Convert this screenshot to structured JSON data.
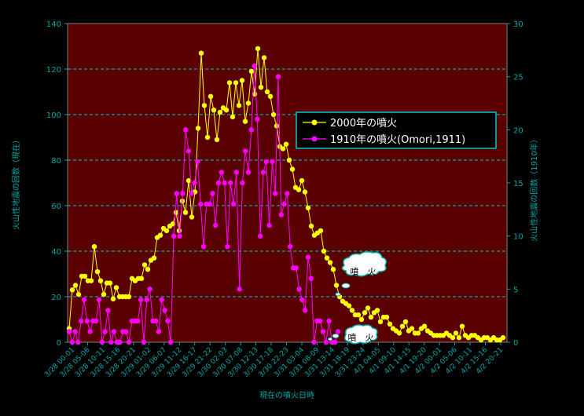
{
  "chart_data": {
    "type": "line",
    "xlabel": "現在の噴火日時",
    "ylabel_left": "火山性地震の回数（現在）",
    "ylabel_right": "火山性地震の回数（1910年）",
    "ylim_left": [
      0,
      140
    ],
    "ylim_right": [
      0,
      30
    ],
    "yticks_left": [
      0,
      20,
      40,
      60,
      80,
      100,
      120,
      140
    ],
    "yticks_right": [
      0,
      5,
      10,
      15,
      20,
      25,
      30
    ],
    "x_tick_labels": [
      "3/28 00-01",
      "3/28 05-06",
      "3/28 10-11",
      "3/28 15-16",
      "3/28 20-21",
      "3/29 01-02",
      "3/29 06-07",
      "3/29 11-12",
      "3/29 16-17",
      "3/29 21-22",
      "3/30 02-03",
      "3/30 07-08",
      "3/30 12-13",
      "3/30 17-18",
      "3/30 22-23",
      "3/31 03-04",
      "3/31 08-09",
      "3/31 13-14",
      "3/31 18-19",
      "3/31 23-24",
      "4/1 04-05",
      "4/1 09-10",
      "4/1 14-15",
      "4/1 19-20",
      "4/2 00-01",
      "4/2 05-06",
      "4/2 10-11",
      "4/2 15-16",
      "4/2 20-21"
    ],
    "legend_position": "right-middle",
    "grid": "horizontal-dashed",
    "colors": {
      "background": "#000000",
      "plot_bg": "#5a0000",
      "axis": "#00a8a8",
      "series_2000": "#ffff00",
      "series_1910": "#ff00ff",
      "grid": "#00c8c8"
    },
    "series": [
      {
        "name": "2000年の噴火",
        "axis": "left",
        "values": [
          6,
          23,
          25,
          21,
          29,
          29,
          27,
          27,
          42,
          31,
          27,
          21,
          26,
          26,
          19,
          24,
          20,
          20,
          20,
          20,
          28,
          27,
          28,
          28,
          34,
          32,
          36,
          37,
          46,
          47,
          50,
          49,
          51,
          52,
          57,
          49,
          62,
          57,
          71,
          55,
          66,
          94,
          127,
          104,
          90,
          108,
          102,
          89,
          101,
          103,
          102,
          114,
          99,
          114,
          104,
          115,
          97,
          105,
          119,
          109,
          129,
          112,
          125,
          110,
          108,
          100,
          95,
          86,
          85,
          87,
          80,
          76,
          68,
          67,
          71,
          66,
          59,
          51,
          47,
          48,
          49,
          40,
          37,
          35,
          32,
          25,
          20,
          18,
          17,
          16,
          14,
          12,
          12,
          10,
          13,
          15,
          11,
          13,
          14,
          9,
          11,
          11,
          8,
          6,
          5,
          4,
          7,
          9,
          5,
          6,
          4,
          4,
          6,
          7,
          5,
          4,
          3,
          3,
          3,
          3,
          4,
          3,
          2,
          4,
          2,
          7,
          3,
          2,
          3,
          3,
          2,
          1,
          2,
          2,
          1,
          2,
          1,
          1,
          2
        ]
      },
      {
        "name": "1910年の噴火(Omori,1911)",
        "axis": "right",
        "values": [
          1,
          0,
          1,
          0,
          2,
          4,
          2,
          1,
          2,
          2,
          4,
          0,
          1,
          3,
          0,
          1,
          0,
          0,
          1,
          1,
          0,
          2,
          2,
          2,
          4,
          0,
          4,
          5,
          2,
          2,
          1,
          4,
          3,
          2,
          0,
          10,
          14,
          10,
          14,
          20,
          18,
          14,
          15,
          17,
          13,
          9,
          13,
          13,
          14,
          11,
          15,
          16,
          15,
          9,
          15,
          13,
          16,
          5,
          15,
          18,
          16,
          20,
          26,
          21,
          10,
          16,
          17,
          11,
          17,
          14,
          25,
          12,
          13,
          14,
          9,
          7,
          7,
          5,
          4,
          3,
          8,
          6,
          0,
          2,
          2,
          1,
          0,
          2,
          0,
          0,
          1
        ]
      }
    ],
    "annotations": [
      "噴　火",
      "噴　火"
    ]
  }
}
